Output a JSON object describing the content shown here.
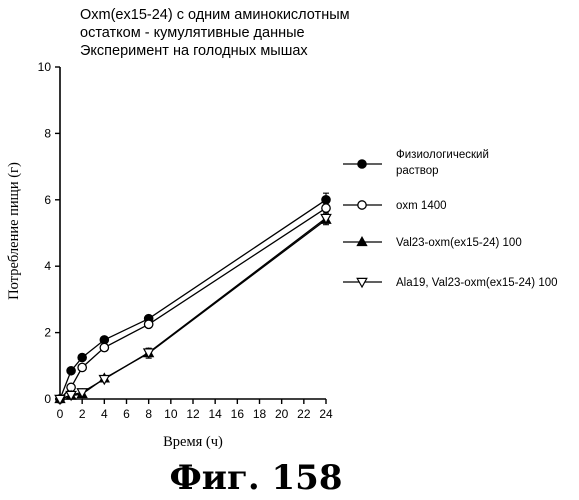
{
  "chart_data": {
    "type": "line",
    "title_lines": [
      "Oxm(ex15-24) с одним аминокислотным",
      "остатком - кумулятивные данные",
      "Эксперимент на голодных мышах"
    ],
    "xlabel": "Время (ч)",
    "ylabel": "Потребление пищи (г)",
    "xlim": [
      0,
      24
    ],
    "ylim": [
      0,
      10
    ],
    "x_ticks": [
      "0",
      "2",
      "4",
      "6",
      "8",
      "10",
      "12",
      "14",
      "16",
      "18",
      "20",
      "22",
      "24"
    ],
    "y_ticks": [
      "0",
      "2",
      "4",
      "6",
      "8",
      "10"
    ],
    "grid": false,
    "legend_position": "right",
    "series": [
      {
        "name_lines": [
          "Физиологический",
          "раствор"
        ],
        "marker": "filled-circle",
        "x": [
          0,
          1,
          2,
          4,
          8,
          24
        ],
        "y": [
          0,
          0.85,
          1.25,
          1.78,
          2.42,
          6.0
        ],
        "err": [
          0,
          0.05,
          0.05,
          0.05,
          0.08,
          0.2
        ]
      },
      {
        "name_lines": [
          "oxm 1400"
        ],
        "marker": "open-circle",
        "x": [
          0,
          1,
          2,
          4,
          8,
          24
        ],
        "y": [
          0,
          0.35,
          0.95,
          1.55,
          2.25,
          5.75
        ],
        "err": [
          0,
          0.05,
          0.05,
          0.05,
          0.06,
          0.15
        ]
      },
      {
        "name_lines": [
          "Val23-oxm(ex15-24) 100"
        ],
        "marker": "filled-triangle-up",
        "x": [
          0,
          1,
          2,
          4,
          8,
          24
        ],
        "y": [
          0,
          0.1,
          0.15,
          0.62,
          1.38,
          5.4
        ],
        "err": [
          0,
          0.03,
          0.03,
          0.05,
          0.15,
          0.15
        ]
      },
      {
        "name_lines": [
          "Ala19, Val23-oxm(ex15-24) 100"
        ],
        "marker": "open-triangle-down",
        "x": [
          0,
          1,
          2,
          4,
          8,
          24
        ],
        "y": [
          0,
          0.12,
          0.2,
          0.6,
          1.4,
          5.45
        ],
        "err": [
          0,
          0.03,
          0.03,
          0.05,
          0.12,
          0.15
        ]
      }
    ]
  },
  "figure_label": "Фиг.  158"
}
